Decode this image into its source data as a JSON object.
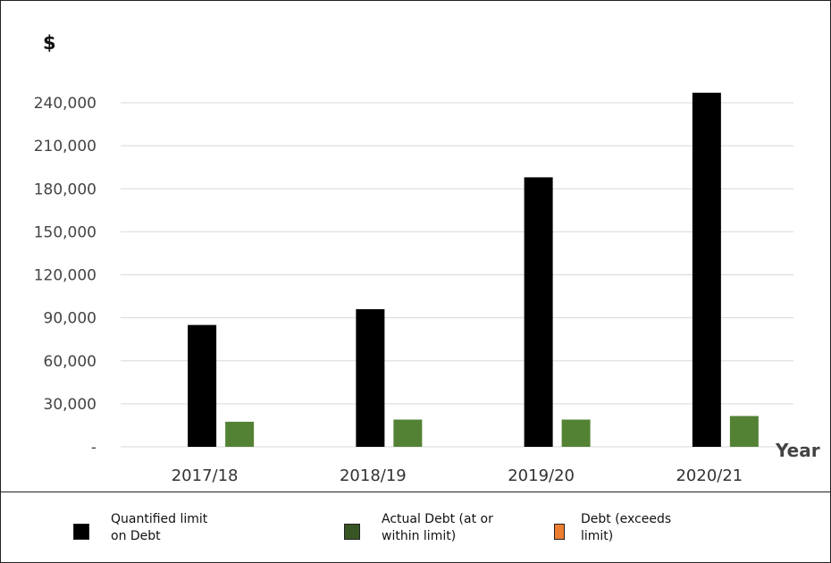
{
  "chart_data": {
    "type": "bar",
    "ylabel": "$",
    "xlabel": "Year",
    "categories": [
      "2017/18",
      "2018/19",
      "2019/20",
      "2020/21"
    ],
    "ylim": [
      0,
      240000
    ],
    "yticks": [
      0,
      30000,
      60000,
      90000,
      120000,
      150000,
      180000,
      210000,
      240000
    ],
    "ytick_labels": [
      "-",
      "30,000",
      "60,000",
      "90,000",
      "120,000",
      "150,000",
      "180,000",
      "210,000",
      "240,000"
    ],
    "grid": true,
    "legend_position": "bottom",
    "series": [
      {
        "name": "Quantified limit on Debt",
        "color": "#000000",
        "values": [
          85000,
          96000,
          188000,
          247000
        ]
      },
      {
        "name": "Actual Debt (at or within limit)",
        "color": "#548235",
        "values": [
          17500,
          19000,
          19000,
          21500
        ]
      },
      {
        "name": "Debt (exceeds limit)",
        "color": "#ED7D31",
        "values": [
          0,
          0,
          0,
          0
        ]
      }
    ]
  },
  "legend": [
    {
      "label": "Quantified limit\non Debt",
      "color": "#000000"
    },
    {
      "label": "Actual Debt (at or\nwithin limit)",
      "color": "#375623"
    },
    {
      "label": "Debt (exceeds\nlimit)",
      "color": "#ED7D31"
    }
  ]
}
